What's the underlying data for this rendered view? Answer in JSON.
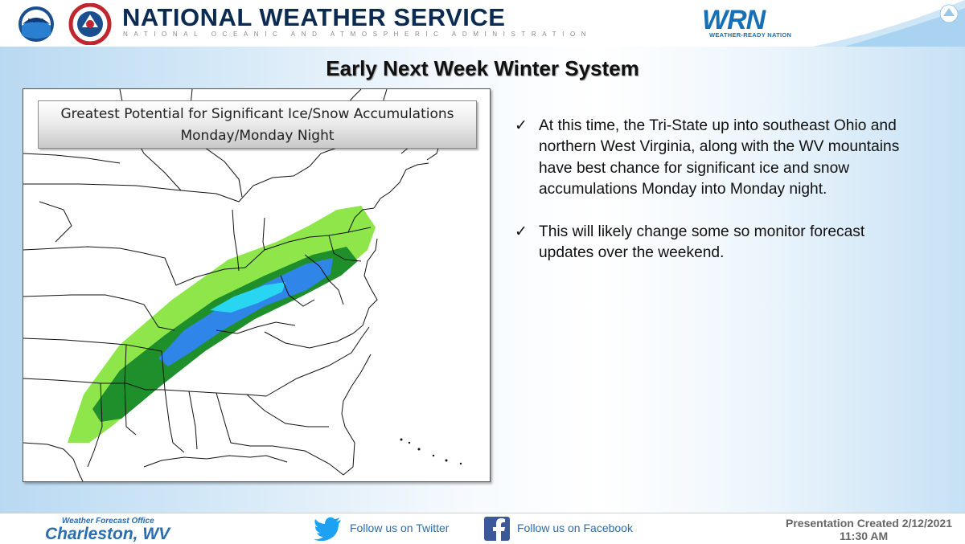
{
  "header": {
    "title": "NATIONAL WEATHER SERVICE",
    "subtitle": "NATIONAL OCEANIC AND ATMOSPHERIC ADMINISTRATION",
    "wrn_logo_text": "WRN",
    "wrn_tagline": "WEATHER-READY NATION",
    "noaa_logo_text": "NOAA"
  },
  "slide": {
    "title": "Early Next Week Winter System",
    "map_label_line1": "Greatest Potential for Significant Ice/Snow Accumulations",
    "map_label_line2": "Monday/Monday Night",
    "bullets": [
      "At this time, the Tri-State up into southeast Ohio and northern West Virginia, along with the WV mountains have best chance for significant ice and snow accumulations Monday into Monday night.",
      "This will likely change some so monitor forecast updates over the weekend."
    ],
    "bullet_glyph": "✓"
  },
  "colors": {
    "light_green": "#8ee64a",
    "dark_green": "#1f8f2c",
    "blue": "#2f86e8",
    "cyan": "#29d6f2",
    "nws_navy": "#0b2b52",
    "link_blue": "#2a6db0"
  },
  "footer": {
    "wfo_label": "Weather Forecast Office",
    "wfo_name": "Charleston, WV",
    "twitter_text": "Follow us on Twitter",
    "facebook_text": "Follow us on Facebook",
    "presentation_created": "Presentation Created 2/12/2021",
    "presentation_time": "11:30 AM"
  },
  "icons": [
    "noaa-logo",
    "nws-logo",
    "wrn-logo",
    "check-icon",
    "twitter-icon",
    "facebook-icon"
  ]
}
